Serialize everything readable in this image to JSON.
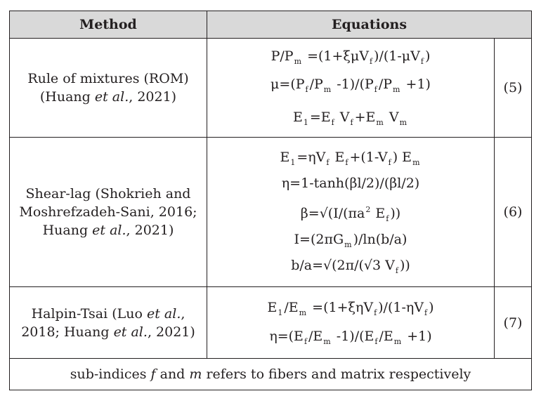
{
  "table": {
    "headers": {
      "method": "Method",
      "equations": "Equations"
    },
    "rows": [
      {
        "method_lines": [
          {
            "text": "Rule of mixtures (ROM)"
          },
          {
            "pre": "(Huang ",
            "italic": "et al.",
            "post": ", 2021)"
          }
        ],
        "number": "(5)",
        "equations": [
          {
            "parts": [
              "P/P",
              "m",
              " =(1+ξμV",
              "f",
              ")/(1-μV",
              "f",
              ")"
            ]
          },
          {
            "parts": [
              "μ=(P",
              "f",
              "/P",
              "m",
              " -1)/(P",
              "f",
              "/P",
              "m",
              " +1)"
            ]
          },
          {
            "parts": [
              "E",
              "1",
              "=E",
              "f",
              " V",
              "f",
              "+E",
              "m",
              " V",
              "m",
              ""
            ]
          }
        ]
      },
      {
        "method_lines": [
          {
            "text": "Shear-lag (Shokrieh and"
          },
          {
            "text": "Moshrefzadeh-Sani, 2016;"
          },
          {
            "pre": "Huang ",
            "italic": "et al.",
            "post": ", 2021)"
          }
        ],
        "number": "(6)",
        "equations": [
          {
            "parts": [
              "E",
              "1",
              "=ηV",
              "f",
              " E",
              "f",
              "+(1-V",
              "f",
              ") E",
              "m",
              ""
            ]
          },
          {
            "parts": [
              "η=1-tanh(βl/2)/(βl/2)"
            ]
          },
          {
            "parts": [
              "β=√(I/(πa",
              "2",
              " E",
              "f",
              "))"
            ],
            "superscript_index": 1
          },
          {
            "parts": [
              "I=(2πG",
              "m",
              ")/ln(b/a)"
            ]
          },
          {
            "parts": [
              "b/a=√(2π/(√3 V",
              "f",
              "))"
            ]
          }
        ]
      },
      {
        "method_lines": [
          {
            "pre": "Halpin-Tsai (Luo ",
            "italic": "et al.",
            "post": ","
          },
          {
            "pre": "2018; Huang ",
            "italic": "et al.",
            "post": ", 2021)"
          }
        ],
        "number": "(7)",
        "equations": [
          {
            "parts": [
              "E",
              "1",
              "/E",
              "m",
              " =(1+ξηV",
              "f",
              ")/(1-ηV",
              "f",
              ")"
            ]
          },
          {
            "parts": [
              "η=(E",
              "f",
              "/E",
              "m",
              " -1)/(E",
              "f",
              "/E",
              "m",
              " +1)"
            ]
          }
        ]
      }
    ],
    "footnote": {
      "pre": "sub-indices ",
      "f": "f",
      "mid": " and ",
      "m": "m",
      "post": " refers to fibers and matrix respectively"
    }
  }
}
